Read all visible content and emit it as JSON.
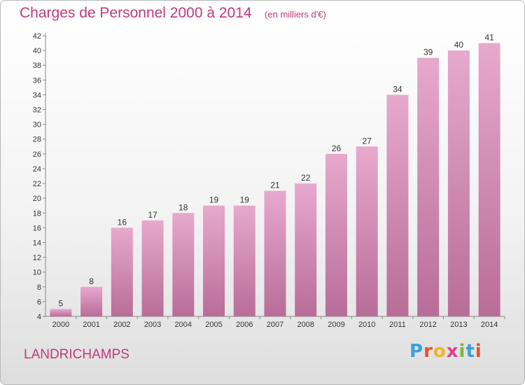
{
  "header": {
    "title": "Charges de Personnel 2000 à 2014",
    "subtitle": "(en milliers d'€)"
  },
  "footer": {
    "place": "LANDRICHAMPS",
    "logo_text": "Proxiti"
  },
  "colors": {
    "title": "#c0397d",
    "bar_top": "#e7a9cd",
    "bar_bottom": "#b86d98"
  },
  "chart_data": {
    "type": "bar",
    "title": "Charges de Personnel 2000 à 2014",
    "subtitle": "(en milliers d'€)",
    "xlabel": "",
    "ylabel": "",
    "categories": [
      "2000",
      "2001",
      "2002",
      "2003",
      "2004",
      "2005",
      "2006",
      "2007",
      "2008",
      "2009",
      "2010",
      "2011",
      "2012",
      "2013",
      "2014"
    ],
    "values": [
      5,
      8,
      16,
      17,
      18,
      19,
      19,
      21,
      22,
      26,
      27,
      34,
      39,
      40,
      41
    ],
    "ylim": [
      4,
      42
    ],
    "yticks": [
      4,
      6,
      8,
      10,
      12,
      14,
      16,
      18,
      20,
      22,
      24,
      26,
      28,
      30,
      32,
      34,
      36,
      38,
      40,
      42
    ],
    "grid": false,
    "legend": "none"
  }
}
